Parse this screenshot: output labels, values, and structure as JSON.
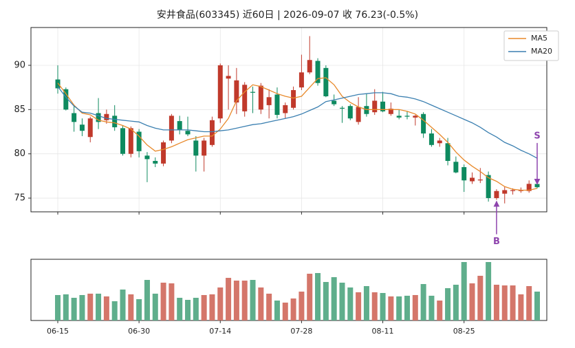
{
  "chart_data": {
    "type": "candlestick",
    "title": "安井食品(603345) 近60日  |  2026-09-07 收 76.23(-0.5%)",
    "categories": [
      "06-15",
      null,
      null,
      null,
      null,
      null,
      null,
      null,
      null,
      null,
      "06-30",
      null,
      null,
      null,
      null,
      null,
      null,
      null,
      null,
      null,
      "07-14",
      null,
      null,
      null,
      null,
      null,
      null,
      null,
      null,
      null,
      "07-28",
      null,
      null,
      null,
      null,
      null,
      null,
      null,
      null,
      null,
      "08-11",
      null,
      null,
      null,
      null,
      null,
      null,
      null,
      null,
      null,
      "08-25",
      null,
      null,
      null,
      null,
      null,
      null,
      null,
      null,
      null
    ],
    "open": [
      88.4,
      87.3,
      84.6,
      83.3,
      81.9,
      84.6,
      83.8,
      84.3,
      82.9,
      80.0,
      82.5,
      79.8,
      79.2,
      78.9,
      81.5,
      83.7,
      82.6,
      81.5,
      79.8,
      81.0,
      84.0,
      88.5,
      85.8,
      84.8,
      87.0,
      85.0,
      85.5,
      86.7,
      84.6,
      85.2,
      87.5,
      89.2,
      90.5,
      89.7,
      86.0,
      85.2,
      85.4,
      83.6,
      85.4,
      84.7,
      85.9,
      84.5,
      84.3,
      84.3,
      84.1,
      84.5,
      82.3,
      81.2,
      81.2,
      79.1,
      78.5,
      76.9,
      77.0,
      77.6,
      75.0,
      75.5,
      75.8,
      75.8,
      75.8,
      76.6
    ],
    "high": [
      90.0,
      87.5,
      85.5,
      84.0,
      84.2,
      86.3,
      85.0,
      85.5,
      83.2,
      83.1,
      82.8,
      80.2,
      79.6,
      81.5,
      84.5,
      84.3,
      84.2,
      82.0,
      81.8,
      84.2,
      90.2,
      90.0,
      89.7,
      88.1,
      87.6,
      88.0,
      87.3,
      87.5,
      85.8,
      87.6,
      91.2,
      93.3,
      90.8,
      90.0,
      86.7,
      85.4,
      85.6,
      86.4,
      86.8,
      87.3,
      87.0,
      85.8,
      85.0,
      84.8,
      84.4,
      84.7,
      82.8,
      81.8,
      81.8,
      79.7,
      78.8,
      77.9,
      78.4,
      78.0,
      76.0,
      76.3,
      76.1,
      76.2,
      77.0,
      76.8
    ],
    "low": [
      86.8,
      84.9,
      82.5,
      82.0,
      81.3,
      82.8,
      83.4,
      82.6,
      79.8,
      79.6,
      79.6,
      76.8,
      78.5,
      78.6,
      81.2,
      82.2,
      82.0,
      78.0,
      78.0,
      80.8,
      83.5,
      85.0,
      84.5,
      84.2,
      84.6,
      84.5,
      84.0,
      84.0,
      84.0,
      85.0,
      87.2,
      89.0,
      87.7,
      86.4,
      85.4,
      83.5,
      83.8,
      83.3,
      84.2,
      84.4,
      84.7,
      84.3,
      83.9,
      83.9,
      83.2,
      81.8,
      80.8,
      80.8,
      78.7,
      77.8,
      75.7,
      76.6,
      76.7,
      74.6,
      74.8,
      74.4,
      75.4,
      75.6,
      75.6,
      76.1
    ],
    "close": [
      87.4,
      85.0,
      83.6,
      82.6,
      84.0,
      83.6,
      84.5,
      83.0,
      80.0,
      82.9,
      80.3,
      79.4,
      78.9,
      81.3,
      84.3,
      82.7,
      82.2,
      79.8,
      81.5,
      83.8,
      90.0,
      88.8,
      88.3,
      87.8,
      86.9,
      87.7,
      86.4,
      84.4,
      85.5,
      87.2,
      89.2,
      90.6,
      88.0,
      86.5,
      85.6,
      85.1,
      84.0,
      85.3,
      84.5,
      86.0,
      84.8,
      85.1,
      84.1,
      84.2,
      84.3,
      82.3,
      81.0,
      81.5,
      79.2,
      77.9,
      77.0,
      77.3,
      77.1,
      75.0,
      75.8,
      75.9,
      75.9,
      75.9,
      76.61,
      76.23
    ],
    "up_color": "#c0392b",
    "down_color": "#0e8a5f",
    "series": [
      {
        "name": "MA5",
        "color": "#e8892a",
        "values": [
          88.0,
          86.8,
          85.5,
          84.6,
          84.4,
          83.8,
          83.6,
          83.5,
          83.2,
          82.8,
          82.0,
          81.0,
          80.3,
          80.5,
          80.8,
          81.2,
          81.6,
          81.8,
          82.0,
          82.0,
          82.8,
          84.0,
          86.0,
          87.0,
          87.8,
          87.6,
          87.2,
          86.8,
          86.5,
          86.3,
          86.5,
          87.5,
          88.5,
          88.6,
          87.8,
          86.5,
          85.8,
          85.3,
          85.0,
          85.0,
          85.0,
          85.0,
          85.0,
          84.8,
          84.5,
          83.8,
          83.0,
          82.2,
          81.3,
          80.2,
          79.3,
          78.6,
          78.0,
          77.3,
          76.9,
          76.3,
          76.0,
          75.9,
          75.9,
          76.1
        ]
      },
      {
        "name": "MA20",
        "color": "#3a7fb0",
        "values": [
          87.6,
          86.4,
          85.4,
          84.7,
          84.6,
          84.3,
          84.0,
          83.9,
          83.8,
          83.7,
          83.6,
          83.2,
          82.9,
          82.7,
          82.7,
          82.7,
          82.7,
          82.6,
          82.5,
          82.5,
          82.6,
          82.7,
          82.9,
          83.1,
          83.3,
          83.4,
          83.6,
          83.8,
          84.0,
          84.2,
          84.5,
          84.9,
          85.3,
          85.9,
          86.1,
          86.3,
          86.5,
          86.7,
          86.8,
          86.9,
          86.9,
          86.8,
          86.5,
          86.4,
          86.2,
          85.9,
          85.5,
          85.1,
          84.7,
          84.3,
          83.9,
          83.5,
          83.0,
          82.4,
          81.9,
          81.3,
          80.9,
          80.4,
          80.0,
          79.5
        ]
      }
    ],
    "ylim": [
      73.45,
      94.27
    ],
    "yticks": [
      75,
      80,
      85,
      90
    ],
    "grid": true,
    "legend": "upper right",
    "volume": [
      37,
      38,
      33,
      37,
      39,
      39,
      35,
      28,
      45,
      38,
      31,
      59,
      39,
      55,
      54,
      33,
      30,
      33,
      37,
      38,
      48,
      62,
      58,
      58,
      59,
      48,
      39,
      29,
      26,
      32,
      42,
      68,
      69,
      56,
      63,
      55,
      48,
      41,
      50,
      41,
      40,
      35,
      35,
      36,
      37,
      53,
      36,
      29,
      47,
      52,
      85,
      54,
      65,
      85,
      52,
      51,
      51,
      38,
      50,
      42
    ],
    "volume_ylim": [
      0,
      89
    ],
    "volume_up_color": "#d4766a",
    "volume_down_color": "#5fae8c",
    "annotations": [
      {
        "text": "B",
        "index": 54,
        "color": "#8e44ad",
        "side": "below"
      },
      {
        "text": "S",
        "index": 59,
        "color": "#8e44ad",
        "side": "above"
      }
    ]
  }
}
